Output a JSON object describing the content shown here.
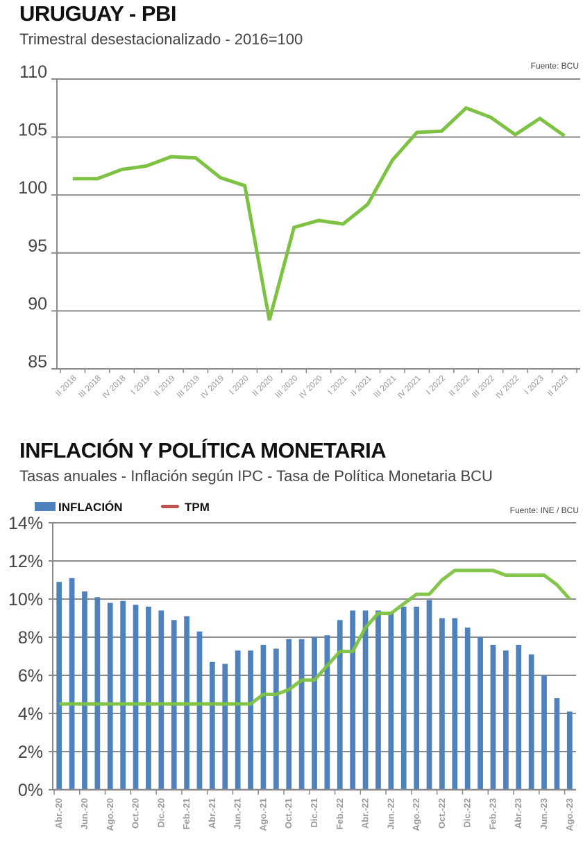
{
  "colors": {
    "line_green": "#7DC242",
    "bar_blue": "#4F81BD",
    "legend_tpm": "#C0504D",
    "grid": "#8a8a8a"
  },
  "chart_data": [
    {
      "type": "line",
      "title": "URUGUAY - PBI",
      "subtitle": "Trimestral desestacionalizado - 2016=100",
      "source": "Fuente: BCU",
      "xlabel": "",
      "ylabel": "",
      "ylim": [
        85,
        110
      ],
      "yticks": [
        85,
        90,
        95,
        100,
        105,
        110
      ],
      "grid": true,
      "categories": [
        "II 2018",
        "III 2018",
        "IV 2018",
        "I 2019",
        "II 2019",
        "III 2019",
        "IV 2019",
        "I 2020",
        "II 2020",
        "III 2020",
        "IV 2020",
        "I 2021",
        "II 2021",
        "III 2021",
        "IV 2021",
        "I 2022",
        "II 2022",
        "III 2022",
        "IV 2022",
        "I 2023",
        "II 2023"
      ],
      "series": [
        {
          "name": "PBI",
          "values": [
            101.4,
            101.4,
            102.2,
            102.5,
            103.3,
            103.2,
            101.5,
            100.8,
            89.2,
            97.2,
            97.8,
            97.5,
            99.2,
            103.0,
            105.4,
            105.5,
            107.5,
            106.7,
            105.2,
            106.6,
            105.1
          ]
        }
      ]
    },
    {
      "type": "bar",
      "title": "INFLACIÓN Y POLÍTICA MONETARIA",
      "subtitle": "Tasas anuales - Inflación según IPC - Tasa de Política Monetaria BCU",
      "source": "Fuente: INE / BCU",
      "xlabel": "",
      "ylabel": "",
      "ylim": [
        0,
        14
      ],
      "yticks": [
        "0%",
        "2%",
        "4%",
        "6%",
        "8%",
        "10%",
        "12%",
        "14%"
      ],
      "grid": true,
      "legend": {
        "placement": "top-left",
        "entries": [
          "INFLACIÓN",
          "TPM"
        ]
      },
      "tick_labels": [
        "Abr.-20",
        "Jun.-20",
        "Ago.-20",
        "Oct.-20",
        "Dic.-20",
        "Feb.-21",
        "Abr.-21",
        "Jun.-21",
        "Ago.-21",
        "Oct.-21",
        "Dic.-21",
        "Feb.-22",
        "Abr.-22",
        "Jun.-22",
        "Ago.-22",
        "Oct.-22",
        "Dic.-22",
        "Feb.-23",
        "Abr.-23",
        "Jun.-23",
        "Ago.-23"
      ],
      "categories": [
        "Abr.-20",
        "May.-20",
        "Jun.-20",
        "Jul.-20",
        "Ago.-20",
        "Sep.-20",
        "Oct.-20",
        "Nov.-20",
        "Dic.-20",
        "Ene.-21",
        "Feb.-21",
        "Mar.-21",
        "Abr.-21",
        "May.-21",
        "Jun.-21",
        "Jul.-21",
        "Ago.-21",
        "Sep.-21",
        "Oct.-21",
        "Nov.-21",
        "Dic.-21",
        "Ene.-22",
        "Feb.-22",
        "Mar.-22",
        "Abr.-22",
        "May.-22",
        "Jun.-22",
        "Jul.-22",
        "Ago.-22",
        "Sep.-22",
        "Oct.-22",
        "Nov.-22",
        "Dic.-22",
        "Ene.-23",
        "Feb.-23",
        "Mar.-23",
        "Abr.-23",
        "May.-23",
        "Jun.-23",
        "Jul.-23",
        "Ago.-23"
      ],
      "series": [
        {
          "name": "INFLACIÓN",
          "type": "bar",
          "values": [
            10.9,
            11.1,
            10.4,
            10.1,
            9.8,
            9.9,
            9.7,
            9.6,
            9.4,
            8.9,
            9.1,
            8.3,
            6.7,
            6.6,
            7.3,
            7.3,
            7.6,
            7.4,
            7.9,
            7.9,
            8.0,
            8.1,
            8.9,
            9.4,
            9.4,
            9.4,
            9.3,
            9.6,
            9.6,
            9.95,
            9.0,
            9.0,
            8.5,
            8.0,
            7.6,
            7.3,
            7.6,
            7.1,
            6.0,
            4.8,
            4.1
          ]
        },
        {
          "name": "TPM",
          "type": "line",
          "values": [
            4.5,
            4.5,
            4.5,
            4.5,
            4.5,
            4.5,
            4.5,
            4.5,
            4.5,
            4.5,
            4.5,
            4.5,
            4.5,
            4.5,
            4.5,
            4.5,
            5.0,
            5.0,
            5.25,
            5.75,
            5.75,
            6.5,
            7.25,
            7.25,
            8.5,
            9.25,
            9.25,
            9.75,
            10.25,
            10.25,
            11.0,
            11.5,
            11.5,
            11.5,
            11.5,
            11.25,
            11.25,
            11.25,
            11.25,
            10.75,
            10.0
          ]
        }
      ]
    }
  ]
}
